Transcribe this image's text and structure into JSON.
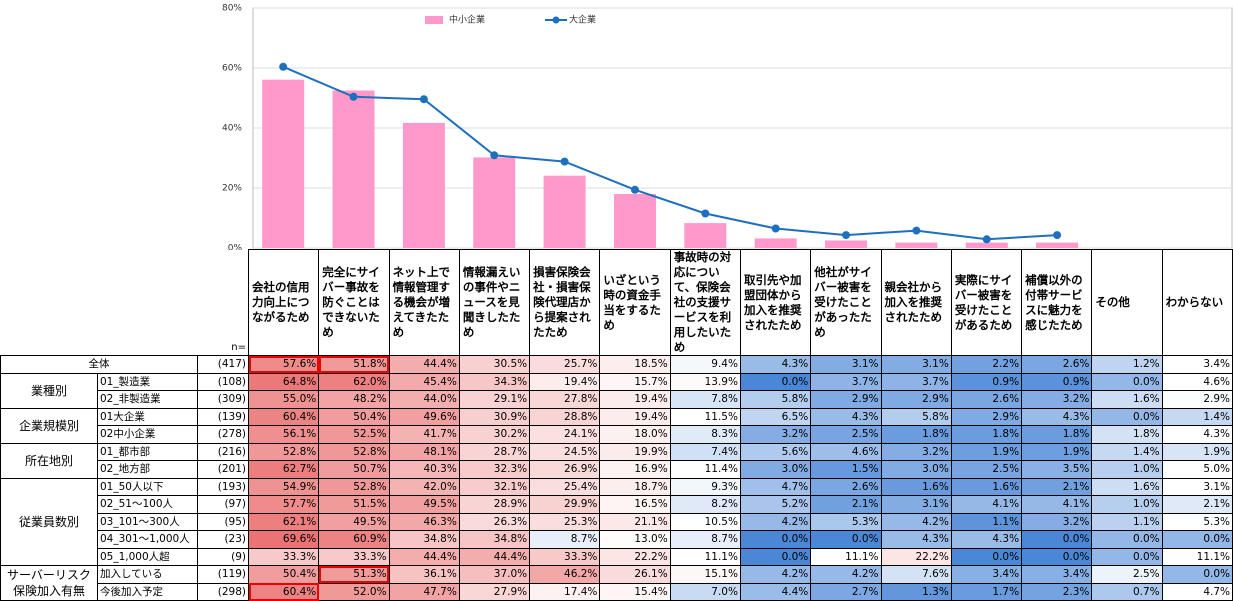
{
  "chart_data": {
    "type": "bar",
    "ylim": [
      0,
      80
    ],
    "yticks": [
      {
        "value": 0,
        "label": "0%"
      },
      {
        "value": 20,
        "label": "20%"
      },
      {
        "value": 40,
        "label": "40%"
      },
      {
        "value": 60,
        "label": "60%"
      },
      {
        "value": 80,
        "label": "80%"
      }
    ],
    "grid": true,
    "series": [
      {
        "name": "中小企業",
        "type": "bar",
        "color": "#ff99cc",
        "values": [
          56.1,
          52.5,
          41.7,
          30.2,
          24.1,
          18.0,
          8.3,
          3.2,
          2.5,
          1.8,
          1.8,
          1.8
        ]
      },
      {
        "name": "大企業",
        "type": "line",
        "color": "#1f6fbf",
        "values": [
          60.4,
          50.4,
          49.6,
          30.9,
          28.8,
          19.4,
          11.5,
          6.5,
          4.3,
          5.8,
          2.9,
          4.3
        ]
      }
    ]
  },
  "table": {
    "n_label": "n=",
    "columns": [
      "会社の信用力向上につながるため",
      "完全にサイバー事故を防ぐことはできないため",
      "ネット上で情報管理する機会が増えてきたため",
      "情報漏えいの事件やニュースを見聞きしたため",
      "損害保険会社・損害保険代理店から提案されたため",
      "いざという時の資金手当をするため",
      "事故時の対応について、保険会社の支援サービスを利用したいため",
      "取引先や加盟団体から加入を推奨されたため",
      "他社がサイバー被害を受けたことがあったため",
      "親会社から加入を推奨されたため",
      "実際にサイバー被害を受けたことがあるため",
      "補償以外の付帯サービスに魅力を感じたため",
      "その他",
      "わからない"
    ],
    "groups": [
      {
        "label": "全体",
        "n": "(417)",
        "cells": [
          "57.6%",
          "51.8%",
          "44.4%",
          "30.5%",
          "25.7%",
          "18.5%",
          "9.4%",
          "4.3%",
          "3.1%",
          "3.1%",
          "2.2%",
          "2.6%",
          "1.2%",
          "3.4%"
        ]
      },
      {
        "label": "業種別",
        "rows": [
          {
            "label": "01_製造業",
            "n": "(108)",
            "cells": [
              "64.8%",
              "62.0%",
              "45.4%",
              "34.3%",
              "19.4%",
              "15.7%",
              "13.9%",
              "0.0%",
              "3.7%",
              "3.7%",
              "0.9%",
              "0.9%",
              "0.0%",
              "4.6%"
            ]
          },
          {
            "label": "02_非製造業",
            "n": "(309)",
            "cells": [
              "55.0%",
              "48.2%",
              "44.0%",
              "29.1%",
              "27.8%",
              "19.4%",
              "7.8%",
              "5.8%",
              "2.9%",
              "2.9%",
              "2.6%",
              "3.2%",
              "1.6%",
              "2.9%"
            ]
          }
        ]
      },
      {
        "label": "企業規模別",
        "rows": [
          {
            "label": "01大企業",
            "n": "(139)",
            "cells": [
              "60.4%",
              "50.4%",
              "49.6%",
              "30.9%",
              "28.8%",
              "19.4%",
              "11.5%",
              "6.5%",
              "4.3%",
              "5.8%",
              "2.9%",
              "4.3%",
              "0.0%",
              "1.4%"
            ]
          },
          {
            "label": "02中小企業",
            "n": "(278)",
            "cells": [
              "56.1%",
              "52.5%",
              "41.7%",
              "30.2%",
              "24.1%",
              "18.0%",
              "8.3%",
              "3.2%",
              "2.5%",
              "1.8%",
              "1.8%",
              "1.8%",
              "1.8%",
              "4.3%"
            ]
          }
        ]
      },
      {
        "label": "所在地別",
        "rows": [
          {
            "label": "01_都市部",
            "n": "(216)",
            "cells": [
              "52.8%",
              "52.8%",
              "48.1%",
              "28.7%",
              "24.5%",
              "19.9%",
              "7.4%",
              "5.6%",
              "4.6%",
              "3.2%",
              "1.9%",
              "1.9%",
              "1.4%",
              "1.9%"
            ]
          },
          {
            "label": "02_地方部",
            "n": "(201)",
            "cells": [
              "62.7%",
              "50.7%",
              "40.3%",
              "32.3%",
              "26.9%",
              "16.9%",
              "11.4%",
              "3.0%",
              "1.5%",
              "3.0%",
              "2.5%",
              "3.5%",
              "1.0%",
              "5.0%"
            ]
          }
        ]
      },
      {
        "label": "従業員数別",
        "rows": [
          {
            "label": "01_50人以下",
            "n": "(193)",
            "cells": [
              "54.9%",
              "52.8%",
              "42.0%",
              "32.1%",
              "25.4%",
              "18.7%",
              "9.3%",
              "4.7%",
              "2.6%",
              "1.6%",
              "1.6%",
              "2.1%",
              "1.6%",
              "3.1%"
            ]
          },
          {
            "label": "02_51～100人",
            "n": "(97)",
            "cells": [
              "57.7%",
              "51.5%",
              "49.5%",
              "28.9%",
              "29.9%",
              "16.5%",
              "8.2%",
              "5.2%",
              "2.1%",
              "3.1%",
              "4.1%",
              "4.1%",
              "1.0%",
              "2.1%"
            ]
          },
          {
            "label": "03_101～300人",
            "n": "(95)",
            "cells": [
              "62.1%",
              "49.5%",
              "46.3%",
              "26.3%",
              "25.3%",
              "21.1%",
              "10.5%",
              "4.2%",
              "5.3%",
              "4.2%",
              "1.1%",
              "3.2%",
              "1.1%",
              "5.3%"
            ]
          },
          {
            "label": "04_301～1,000人",
            "n": "(23)",
            "cells": [
              "69.6%",
              "60.9%",
              "34.8%",
              "34.8%",
              "8.7%",
              "13.0%",
              "8.7%",
              "0.0%",
              "0.0%",
              "4.3%",
              "4.3%",
              "0.0%",
              "0.0%",
              "0.0%"
            ]
          },
          {
            "label": "05_1,000人超",
            "n": "(9)",
            "cells": [
              "33.3%",
              "33.3%",
              "44.4%",
              "44.4%",
              "33.3%",
              "22.2%",
              "11.1%",
              "0.0%",
              "11.1%",
              "22.2%",
              "0.0%",
              "0.0%",
              "0.0%",
              "11.1%"
            ]
          }
        ]
      },
      {
        "label": "サーバーリスク保険加入有無",
        "rows": [
          {
            "label": "加入している",
            "n": "(119)",
            "cells": [
              "50.4%",
              "51.3%",
              "36.1%",
              "37.0%",
              "46.2%",
              "26.1%",
              "15.1%",
              "4.2%",
              "4.2%",
              "7.6%",
              "3.4%",
              "3.4%",
              "2.5%",
              "0.0%"
            ]
          },
          {
            "label": "今後加入予定",
            "n": "(298)",
            "cells": [
              "60.4%",
              "52.0%",
              "47.7%",
              "27.9%",
              "17.4%",
              "15.4%",
              "7.0%",
              "4.4%",
              "2.7%",
              "1.3%",
              "1.7%",
              "2.3%",
              "0.7%",
              "4.7%"
            ]
          }
        ]
      }
    ]
  }
}
